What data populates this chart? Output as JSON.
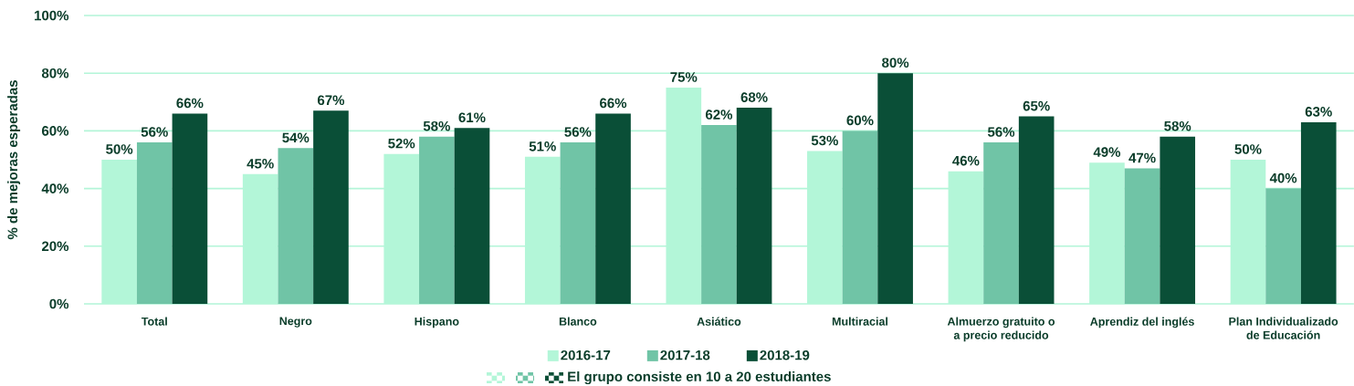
{
  "chart_data": {
    "type": "bar",
    "ylabel": "% de mejoras esperadas",
    "categories": [
      "Total",
      "Negro",
      "Hispano",
      "Blanco",
      "Asiático",
      "Multiracial",
      "Almuerzo gratuito o a precio reducido",
      "Aprendiz del inglés",
      "Plan Individualizado de Educación"
    ],
    "series": [
      {
        "name": "2016-17",
        "color": "#b3f6d8",
        "values": [
          50,
          45,
          52,
          51,
          75,
          53,
          46,
          49,
          50
        ],
        "value_labels": [
          "50%",
          "45%",
          "52%",
          "51%",
          "75%",
          "53%",
          "46%",
          "49%",
          "50%"
        ]
      },
      {
        "name": "2017-18",
        "color": "#70c4a6",
        "values": [
          56,
          54,
          58,
          56,
          62,
          60,
          56,
          47,
          40
        ],
        "value_labels": [
          "56%",
          "54%",
          "58%",
          "56%",
          "62%",
          "60%",
          "56%",
          "47%",
          "40%"
        ]
      },
      {
        "name": "2018-19",
        "color": "#0a4f37",
        "values": [
          66,
          67,
          61,
          66,
          68,
          80,
          65,
          58,
          63
        ],
        "value_labels": [
          "66%",
          "67%",
          "61%",
          "66%",
          "68%",
          "80%",
          "65%",
          "58%",
          "63%"
        ]
      }
    ],
    "ylim": [
      0,
      100
    ],
    "yticks": [
      {
        "value": 0,
        "label": "0%"
      },
      {
        "value": 20,
        "label": "20%"
      },
      {
        "value": 40,
        "label": "40%"
      },
      {
        "value": 60,
        "label": "60%"
      },
      {
        "value": 80,
        "label": "80%"
      },
      {
        "value": 100,
        "label": "100%"
      }
    ],
    "grid": "y",
    "legend": "bottom",
    "annotations": [
      "El grupo consiste en 10 a 20 estudiantes"
    ]
  }
}
